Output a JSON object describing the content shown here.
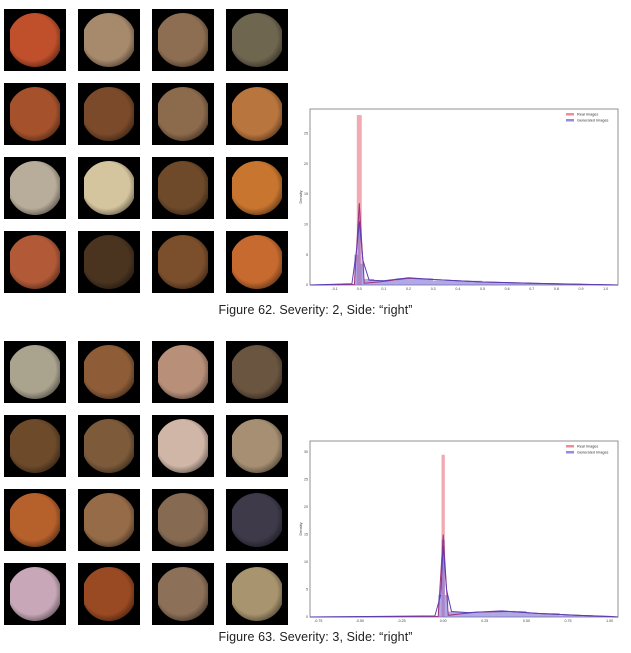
{
  "figures": [
    {
      "caption": "Figure 62. Severity: 2, Side: “right”",
      "thumbnails": [
        {
          "name": "fundus-image",
          "color": "#c0502c"
        },
        {
          "name": "fundus-image",
          "color": "#a7896c"
        },
        {
          "name": "fundus-image",
          "color": "#8e6e52"
        },
        {
          "name": "fundus-image",
          "color": "#6f6650"
        },
        {
          "name": "fundus-image",
          "color": "#a5522c"
        },
        {
          "name": "fundus-image",
          "color": "#7a4a2a"
        },
        {
          "name": "fundus-image",
          "color": "#8c6a4c"
        },
        {
          "name": "fundus-image",
          "color": "#b9753e"
        },
        {
          "name": "fundus-image",
          "color": "#b8ad9a"
        },
        {
          "name": "fundus-image",
          "color": "#d5c59f"
        },
        {
          "name": "fundus-image",
          "color": "#6e4a2a"
        },
        {
          "name": "fundus-image",
          "color": "#c8752f"
        },
        {
          "name": "fundus-image",
          "color": "#b25a37"
        },
        {
          "name": "fundus-image",
          "color": "#4a3420"
        },
        {
          "name": "fundus-image",
          "color": "#7c4f2c"
        },
        {
          "name": "fundus-image",
          "color": "#c66a2f"
        }
      ],
      "chart_data": {
        "type": "histogram",
        "ylabel": "Density",
        "legend": [
          "Real Images",
          "Generated Images"
        ],
        "legend_position": "top-right",
        "x_ticks": [
          "-0.1",
          "0.0",
          "0.1",
          "0.2",
          "0.3",
          "0.4",
          "0.5",
          "0.6",
          "0.7",
          "0.8",
          "0.9",
          "1.0"
        ],
        "y_ticks": [
          "0",
          "5",
          "10",
          "15",
          "20",
          "25"
        ],
        "xlim": [
          -0.2,
          1.05
        ],
        "ylim": [
          0,
          29
        ],
        "series": [
          {
            "name": "Real Images",
            "color": "#e8707f",
            "bins": [
              [
                -0.01,
                0.01,
                28
              ]
            ],
            "kde": [
              [
                -0.2,
                0
              ],
              [
                -0.02,
                0.1
              ],
              [
                0.0,
                13.5
              ],
              [
                0.02,
                0.3
              ],
              [
                0.1,
                0.6
              ],
              [
                0.2,
                1.1
              ],
              [
                0.3,
                0.9
              ],
              [
                0.5,
                0.5
              ],
              [
                0.7,
                0.3
              ],
              [
                0.9,
                0.1
              ],
              [
                1.0,
                0.05
              ],
              [
                1.05,
                0
              ]
            ]
          },
          {
            "name": "Generated Images",
            "color": "#7a6fd8",
            "bins": [
              [
                -0.02,
                -0.005,
                5
              ],
              [
                -0.005,
                0.005,
                12
              ],
              [
                0.005,
                0.02,
                3.5
              ],
              [
                0.02,
                0.06,
                1
              ],
              [
                0.06,
                0.15,
                0.7
              ],
              [
                0.15,
                0.3,
                1.1
              ],
              [
                0.3,
                0.5,
                0.7
              ],
              [
                0.5,
                0.7,
                0.4
              ],
              [
                0.7,
                0.9,
                0.2
              ],
              [
                0.9,
                1.0,
                0.1
              ]
            ],
            "kde": [
              [
                -0.2,
                0
              ],
              [
                -0.03,
                0.2
              ],
              [
                -0.01,
                6
              ],
              [
                0.0,
                10.5
              ],
              [
                0.015,
                4
              ],
              [
                0.04,
                0.8
              ],
              [
                0.1,
                0.7
              ],
              [
                0.2,
                1.2
              ],
              [
                0.3,
                0.9
              ],
              [
                0.5,
                0.5
              ],
              [
                0.7,
                0.3
              ],
              [
                0.9,
                0.12
              ],
              [
                1.05,
                0
              ]
            ]
          }
        ]
      }
    },
    {
      "caption": "Figure 63. Severity: 3, Side: “right”",
      "thumbnails": [
        {
          "name": "fundus-image",
          "color": "#aaa48f"
        },
        {
          "name": "fundus-image",
          "color": "#8e5d38"
        },
        {
          "name": "fundus-image",
          "color": "#b8907a"
        },
        {
          "name": "fundus-image",
          "color": "#6a5540"
        },
        {
          "name": "fundus-image",
          "color": "#6c4a2a"
        },
        {
          "name": "fundus-image",
          "color": "#7c5a3a"
        },
        {
          "name": "fundus-image",
          "color": "#d0b6a6"
        },
        {
          "name": "fundus-image",
          "color": "#a68f72"
        },
        {
          "name": "fundus-image",
          "color": "#b6602c"
        },
        {
          "name": "fundus-image",
          "color": "#966c48"
        },
        {
          "name": "fundus-image",
          "color": "#866a52"
        },
        {
          "name": "fundus-image",
          "color": "#3e3a4a"
        },
        {
          "name": "fundus-image",
          "color": "#c8a8b8"
        },
        {
          "name": "fundus-image",
          "color": "#9a4a22"
        },
        {
          "name": "fundus-image",
          "color": "#8c7058"
        },
        {
          "name": "fundus-image",
          "color": "#a8946e"
        }
      ],
      "chart_data": {
        "type": "histogram",
        "ylabel": "Density",
        "legend": [
          "Real Images",
          "Generated Images"
        ],
        "legend_position": "top-right",
        "x_ticks": [
          "-0.75",
          "-0.50",
          "-0.25",
          "0.00",
          "0.25",
          "0.50",
          "0.75",
          "1.00"
        ],
        "y_ticks": [
          "0",
          "5",
          "10",
          "15",
          "20",
          "25",
          "30"
        ],
        "xlim": [
          -0.8,
          1.05
        ],
        "ylim": [
          0,
          32
        ],
        "series": [
          {
            "name": "Real Images",
            "color": "#e8707f",
            "bins": [
              [
                -0.01,
                0.01,
                29.5
              ]
            ],
            "kde": [
              [
                -0.8,
                0
              ],
              [
                -0.03,
                0.1
              ],
              [
                0.0,
                15
              ],
              [
                0.03,
                0.3
              ],
              [
                0.2,
                0.9
              ],
              [
                0.4,
                1.0
              ],
              [
                0.6,
                0.6
              ],
              [
                0.8,
                0.3
              ],
              [
                1.0,
                0.1
              ],
              [
                1.05,
                0
              ]
            ]
          },
          {
            "name": "Generated Images",
            "color": "#7a6fd8",
            "bins": [
              [
                -0.03,
                -0.01,
                4
              ],
              [
                -0.01,
                0.01,
                14
              ],
              [
                0.01,
                0.03,
                4
              ],
              [
                0.03,
                0.1,
                1
              ],
              [
                0.1,
                0.3,
                0.9
              ],
              [
                0.3,
                0.5,
                1.1
              ],
              [
                0.5,
                0.7,
                0.7
              ],
              [
                0.7,
                0.9,
                0.3
              ],
              [
                0.9,
                1.0,
                0.1
              ]
            ],
            "kde": [
              [
                -0.8,
                0
              ],
              [
                -0.05,
                0.2
              ],
              [
                -0.015,
                4
              ],
              [
                0.0,
                13
              ],
              [
                0.02,
                5
              ],
              [
                0.05,
                1
              ],
              [
                0.15,
                0.8
              ],
              [
                0.35,
                1.1
              ],
              [
                0.55,
                0.7
              ],
              [
                0.8,
                0.3
              ],
              [
                1.05,
                0
              ]
            ]
          }
        ]
      }
    }
  ]
}
